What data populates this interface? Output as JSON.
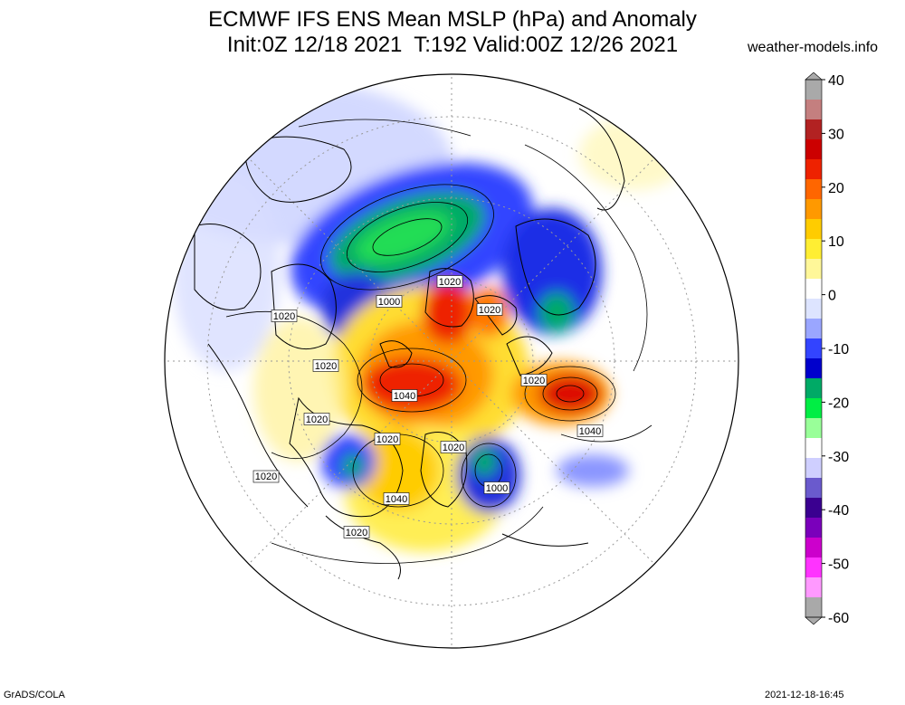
{
  "title": {
    "line1": "ECMWF IFS ENS Mean MSLP (hPa) and Anomaly",
    "line2": "Init:0Z 12/18 2021  T:192 Valid:00Z 12/26 2021"
  },
  "site": "weather-models.info",
  "credits": {
    "left": "GrADS/COLA",
    "right": "2021-12-18-16:45"
  },
  "colorbar": {
    "ticks": [
      "40",
      "30",
      "20",
      "10",
      "0",
      "-10",
      "-20",
      "-30",
      "-40",
      "-50",
      "-60"
    ],
    "colors": [
      "#a9a9a9",
      "#c47f7f",
      "#b22222",
      "#cc0000",
      "#ee2200",
      "#ff6600",
      "#ff9900",
      "#ffcc00",
      "#ffee33",
      "#fff799",
      "#ffffff",
      "#dde4ff",
      "#9aa6ff",
      "#3344ff",
      "#0000cc",
      "#00aa66",
      "#00ee44",
      "#99ff99",
      "#ffffff",
      "#cfcfff",
      "#6a5acd",
      "#3a0090",
      "#7a00bb",
      "#cc00cc",
      "#ff33ff",
      "#ff99ff",
      "#a9a9a9"
    ]
  },
  "isobar_labels": [
    "1020",
    "1000",
    "1020",
    "1020",
    "1020",
    "1040",
    "1020",
    "1020",
    "1040",
    "1020",
    "1000",
    "1040",
    "1020",
    "1020",
    "1020"
  ],
  "colors": {
    "land_outline": "#000000",
    "ocean": "#ffffff"
  }
}
